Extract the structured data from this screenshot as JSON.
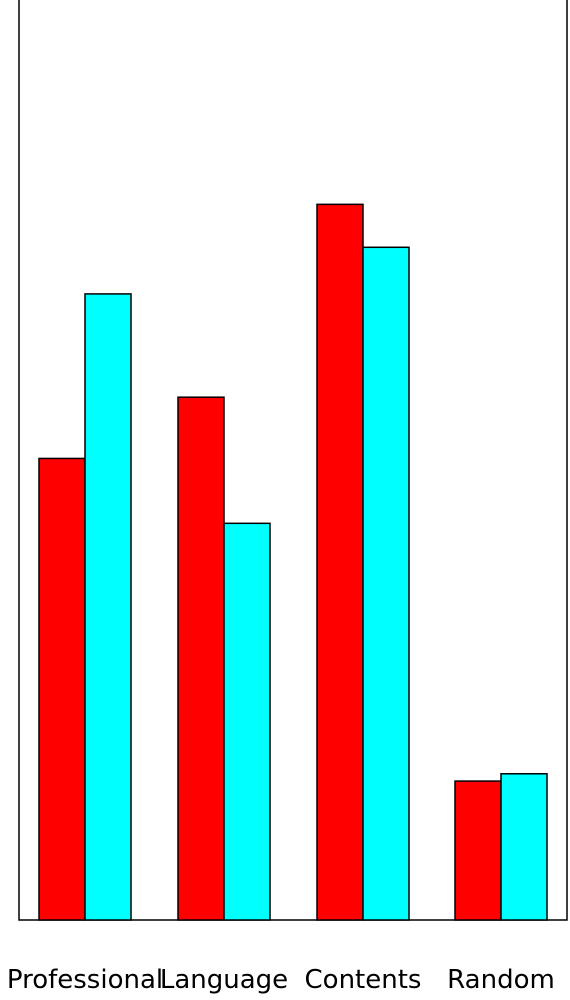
{
  "chart_data": {
    "type": "bar",
    "categories": [
      "Professional",
      "Language",
      "Contents",
      "Random"
    ],
    "series": [
      {
        "color": "#ff0000",
        "values": [
          50.5,
          57.2,
          78.3,
          15.2
        ]
      },
      {
        "color": "#00ffff",
        "values": [
          68.5,
          43.4,
          73.6,
          16.0
        ]
      }
    ],
    "ylim": [
      0,
      100
    ],
    "grid": false,
    "legend": "none"
  }
}
